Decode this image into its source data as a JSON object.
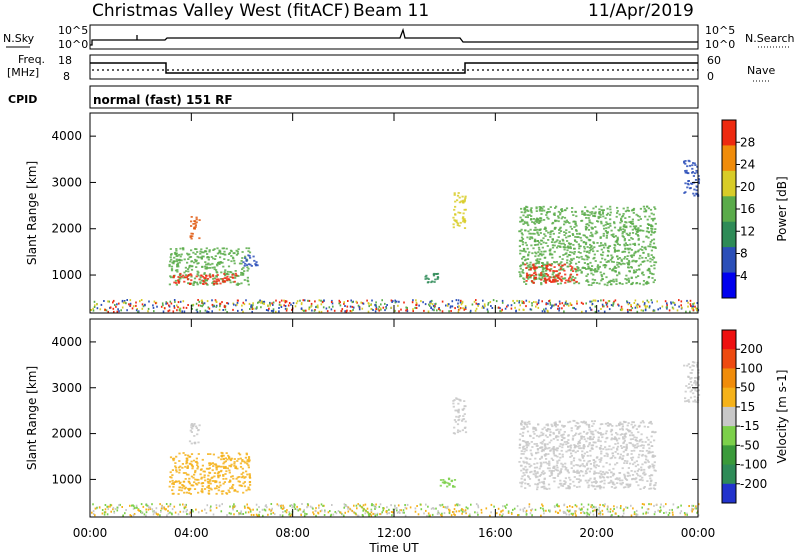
{
  "header": {
    "title": "Christmas Valley West (fitACF)",
    "beam": "Beam 11",
    "date": "11/Apr/2019"
  },
  "top_strip": {
    "left_label": "N.Sky",
    "right_label": "N.Search",
    "scale_top": "10^5",
    "scale_bottom": "10^0"
  },
  "freq_strip": {
    "left_label_line1": "Freq.",
    "left_label_line2": "[MHz]",
    "left_top": "18",
    "left_bottom": "8",
    "right_top": "60",
    "right_bottom": "0",
    "right_label": "Nave"
  },
  "cpid": {
    "label": "CPID",
    "text": "normal (fast) 151 RF"
  },
  "chart_data": [
    {
      "type": "heatmap",
      "title": "",
      "ylabel": "Slant Range [km]",
      "xlabel": "",
      "ylim": [
        180,
        4500
      ],
      "y_ticks": [
        "1000",
        "2000",
        "3000",
        "4000"
      ],
      "x_ticks": [
        "00:00",
        "04:00",
        "08:00",
        "12:00",
        "16:00",
        "20:00",
        "00:00"
      ],
      "colorbar": {
        "label": "Power [dB]",
        "ticks": [
          "28",
          "24",
          "20",
          "16",
          "12",
          "8",
          "4"
        ],
        "colors": [
          "#0000ee",
          "#2b4fb8",
          "#2e8b57",
          "#5aab4a",
          "#d8cc28",
          "#f08c0a",
          "#ee2a10"
        ]
      },
      "regions": [
        {
          "t0": 3.9,
          "t1": 4.3,
          "r0": 1800,
          "r1": 2300,
          "color": "#e05a10"
        },
        {
          "t0": 3.1,
          "t1": 6.3,
          "r0": 800,
          "r1": 1600,
          "color": "#5aab4a"
        },
        {
          "t0": 3.2,
          "t1": 5.8,
          "r0": 820,
          "r1": 1050,
          "color": "#ee2a10"
        },
        {
          "t0": 6.0,
          "t1": 6.6,
          "r0": 1200,
          "r1": 1450,
          "color": "#2b4fb8"
        },
        {
          "t0": 13.2,
          "t1": 13.7,
          "r0": 850,
          "r1": 1050,
          "color": "#2e8b57"
        },
        {
          "t0": 14.3,
          "t1": 14.8,
          "r0": 2000,
          "r1": 2800,
          "color": "#d8cc28"
        },
        {
          "t0": 16.9,
          "t1": 22.3,
          "r0": 800,
          "r1": 2500,
          "color": "#5aab4a"
        },
        {
          "t0": 17.1,
          "t1": 19.2,
          "r0": 850,
          "r1": 1250,
          "color": "#ee2a10"
        },
        {
          "t0": 23.4,
          "t1": 24.0,
          "r0": 2700,
          "r1": 3500,
          "color": "#2b4fb8"
        }
      ]
    },
    {
      "type": "heatmap",
      "title": "",
      "ylabel": "Slant Range [km]",
      "xlabel": "Time UT",
      "ylim": [
        180,
        4500
      ],
      "y_ticks": [
        "1000",
        "2000",
        "3000",
        "4000"
      ],
      "x_ticks": [
        "00:00",
        "04:00",
        "08:00",
        "12:00",
        "16:00",
        "20:00",
        "00:00"
      ],
      "colorbar": {
        "label": "Velocity [m s-1]",
        "ticks": [
          "200",
          "100",
          "50",
          "15",
          "-15",
          "-50",
          "-100",
          "-200"
        ],
        "colors": [
          "#2233cc",
          "#2e8b57",
          "#3a9a3a",
          "#7cd04a",
          "#c8c8c8",
          "#f5b21a",
          "#f08c0a",
          "#ee4a10",
          "#ee1010"
        ]
      },
      "regions": [
        {
          "t0": 3.9,
          "t1": 4.3,
          "r0": 1800,
          "r1": 2300,
          "color": "#c8c8c8"
        },
        {
          "t0": 3.1,
          "t1": 6.3,
          "r0": 700,
          "r1": 1600,
          "color": "#f5b21a"
        },
        {
          "t0": 13.8,
          "t1": 14.4,
          "r0": 850,
          "r1": 1050,
          "color": "#7cd04a"
        },
        {
          "t0": 14.3,
          "t1": 14.8,
          "r0": 2000,
          "r1": 2800,
          "color": "#c8c8c8"
        },
        {
          "t0": 16.9,
          "t1": 22.3,
          "r0": 800,
          "r1": 2300,
          "color": "#c8c8c8"
        },
        {
          "t0": 23.4,
          "t1": 24.0,
          "r0": 2700,
          "r1": 3600,
          "color": "#c8c8c8"
        }
      ]
    }
  ]
}
